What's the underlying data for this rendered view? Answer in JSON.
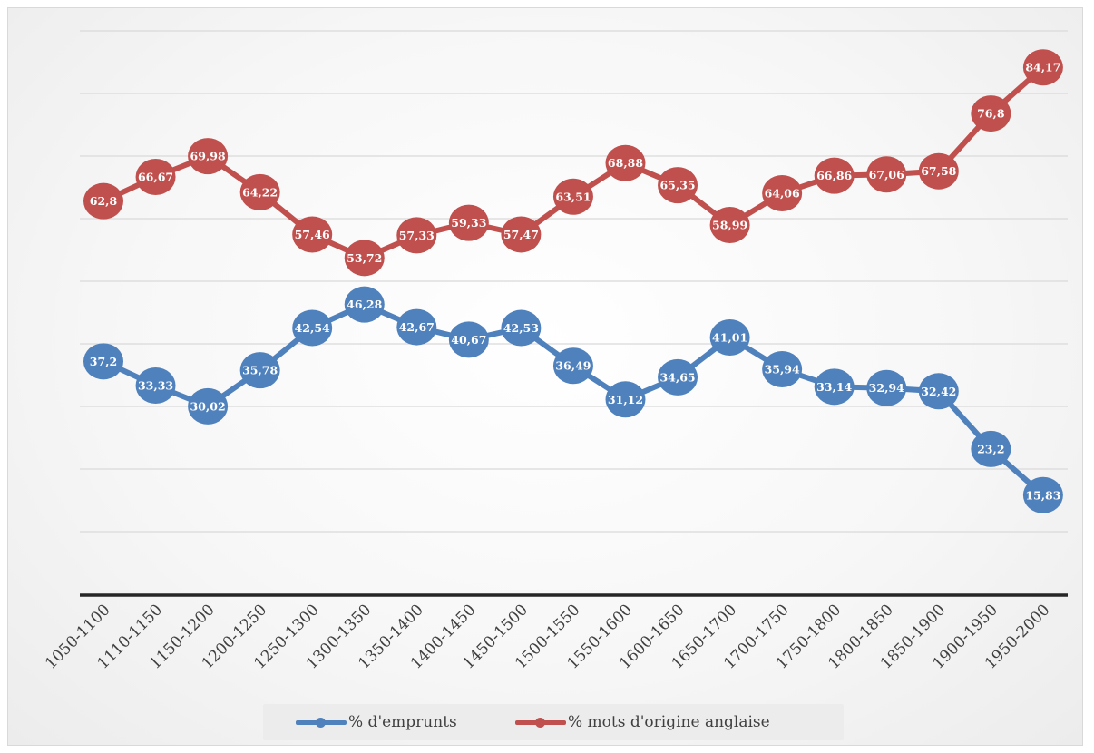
{
  "chart_data": {
    "type": "line",
    "categories": [
      "1050-1100",
      "1110-1150",
      "1150-1200",
      "1200-1250",
      "1250-1300",
      "1300-1350",
      "1350-1400",
      "1400-1450",
      "1450-1500",
      "1500-1550",
      "1550-1600",
      "1600-1650",
      "1650-1700",
      "1700-1750",
      "1750-1800",
      "1800-1850",
      "1850-1900",
      "1900-1950",
      "1950-2000"
    ],
    "series": [
      {
        "name": "% d'emprunts",
        "color": "#4f81bd",
        "values": [
          37.2,
          33.33,
          30.02,
          35.78,
          42.54,
          46.28,
          42.67,
          40.67,
          42.53,
          36.49,
          31.12,
          34.65,
          41.01,
          35.94,
          33.14,
          32.94,
          32.42,
          23.2,
          15.83
        ],
        "labels": [
          "37,2",
          "33,33",
          "30,02",
          "35,78",
          "42,54",
          "46,28",
          "42,67",
          "40,67",
          "42,53",
          "36,49",
          "31,12",
          "34,65",
          "41,01",
          "35,94",
          "33,14",
          "32,94",
          "32,42",
          "23,2",
          "15,83"
        ]
      },
      {
        "name": "% mots d'origine anglaise",
        "color": "#c0504d",
        "values": [
          62.8,
          66.67,
          69.98,
          64.22,
          57.46,
          53.72,
          57.33,
          59.33,
          57.47,
          63.51,
          68.88,
          65.35,
          58.99,
          64.06,
          66.86,
          67.06,
          67.58,
          76.8,
          84.17
        ],
        "labels": [
          "62,8",
          "66,67",
          "69,98",
          "64,22",
          "57,46",
          "53,72",
          "57,33",
          "59,33",
          "57,47",
          "63,51",
          "68,88",
          "65,35",
          "58,99",
          "64,06",
          "66,86",
          "67,06",
          "67,58",
          "76,8",
          "84,17"
        ]
      }
    ],
    "ylim": [
      0,
      90
    ],
    "yticks": [
      0,
      10,
      20,
      30,
      40,
      50,
      60,
      70,
      80,
      90
    ],
    "grid": true,
    "legend": "bottom",
    "title": "",
    "xlabel": "",
    "ylabel": ""
  }
}
